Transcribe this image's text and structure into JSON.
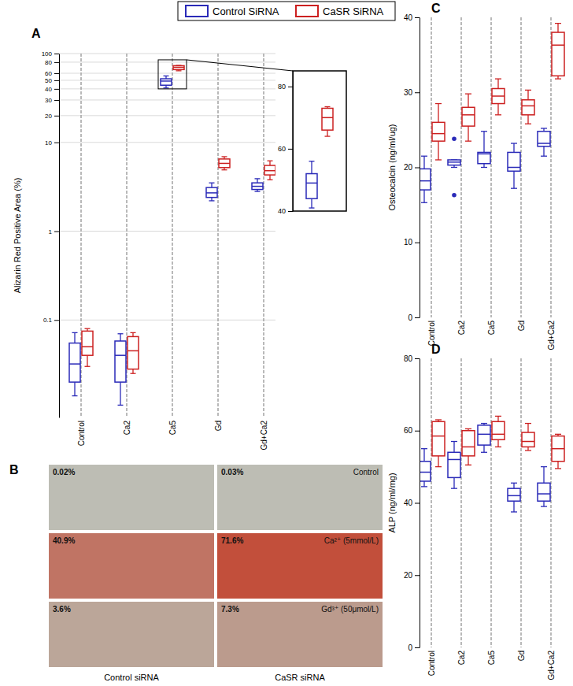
{
  "chart_data": [
    {
      "type": "box",
      "title": "A",
      "ylabel": "Alizarin Red Positive Area (%)",
      "log": "y",
      "grid": true,
      "categories": [
        "Control",
        "Ca2",
        "Ca5",
        "Gd",
        "Gd+Ca2"
      ],
      "ylim": [
        0.008,
        100
      ],
      "yticks": [
        0.1,
        1,
        10,
        20,
        30,
        40,
        50,
        60,
        80,
        100
      ],
      "series": [
        {
          "name": "Control SiRNA",
          "color": "#2a2ab8",
          "values": [
            {
              "min": 0.014,
              "q1": 0.02,
              "median": 0.032,
              "q3": 0.055,
              "max": 0.072
            },
            {
              "min": 0.011,
              "q1": 0.02,
              "median": 0.04,
              "q3": 0.058,
              "max": 0.07
            },
            {
              "min": 41,
              "q1": 44,
              "median": 49,
              "q3": 52,
              "max": 56
            },
            {
              "min": 2.2,
              "q1": 2.4,
              "median": 2.7,
              "q3": 3.1,
              "max": 3.5
            },
            {
              "min": 2.8,
              "q1": 2.95,
              "median": 3.2,
              "q3": 3.5,
              "max": 3.9
            }
          ]
        },
        {
          "name": "CaSR SiRNA",
          "color": "#cc2020",
          "values": [
            {
              "min": 0.03,
              "q1": 0.04,
              "median": 0.05,
              "q3": 0.075,
              "max": 0.08
            },
            {
              "min": 0.025,
              "q1": 0.028,
              "median": 0.045,
              "q3": 0.065,
              "max": 0.072
            },
            {
              "min": 64,
              "q1": 66,
              "median": 70,
              "q3": 73,
              "max": 73.5
            },
            {
              "min": 4.9,
              "q1": 5.2,
              "median": 5.8,
              "q3": 6.5,
              "max": 6.9
            },
            {
              "min": 3.8,
              "q1": 4.3,
              "median": 4.8,
              "q3": 5.5,
              "max": 6.2
            }
          ]
        }
      ],
      "inset": {
        "category": "Ca5",
        "ylim": [
          40,
          85
        ],
        "yticks": [
          40,
          60,
          80
        ]
      }
    },
    {
      "type": "image_grid",
      "title": "B",
      "rows": [
        "Control",
        "Ca²⁺ (5mmol/L)",
        "Gd³⁺ (50μmol/L)"
      ],
      "columns": [
        "Control siRNA",
        "CaSR siRNA"
      ],
      "values": [
        [
          0.02,
          0.03
        ],
        [
          40.9,
          71.6
        ],
        [
          3.6,
          7.3
        ]
      ],
      "value_labels": [
        [
          "0.02%",
          "0.03%"
        ],
        [
          "40.9%",
          "71.6%"
        ],
        [
          "3.6%",
          "7.3%"
        ]
      ]
    },
    {
      "type": "box",
      "title": "C",
      "ylabel": "Osteocalcin (ng/ml/ug)",
      "grid": "x",
      "categories": [
        "Control",
        "Ca2",
        "Ca5",
        "Gd",
        "Gd+Ca2"
      ],
      "ylim": [
        0,
        40
      ],
      "yticks": [
        0,
        10,
        20,
        30,
        40
      ],
      "series": [
        {
          "color": "#2a2ab8",
          "values": [
            {
              "min": 15.3,
              "q1": 17,
              "median": 18.2,
              "q3": 19.8,
              "max": 21.5
            },
            {
              "min": 20,
              "q1": 20.3,
              "median": 20.7,
              "q3": 21,
              "max": 21,
              "outliers": [
                23.8,
                16.3
              ]
            },
            {
              "min": 20,
              "q1": 20.5,
              "median": 21.8,
              "q3": 22,
              "max": 24.8
            },
            {
              "min": 17.2,
              "q1": 19.5,
              "median": 20,
              "q3": 22,
              "max": 23.2
            },
            {
              "min": 21.5,
              "q1": 22.8,
              "median": 23.2,
              "q3": 24.8,
              "max": 25.2
            }
          ]
        },
        {
          "color": "#cc2020",
          "values": [
            {
              "min": 21,
              "q1": 23.5,
              "median": 24.5,
              "q3": 26,
              "max": 28.5
            },
            {
              "min": 23.5,
              "q1": 25.5,
              "median": 27,
              "q3": 28,
              "max": 29.8
            },
            {
              "min": 27,
              "q1": 28.5,
              "median": 29.5,
              "q3": 30.5,
              "max": 31.8
            },
            {
              "min": 25.8,
              "q1": 27,
              "median": 28.2,
              "q3": 29,
              "max": 30.3
            },
            {
              "min": 31.8,
              "q1": 32.2,
              "median": 36.3,
              "q3": 38,
              "max": 39.2
            }
          ]
        }
      ]
    },
    {
      "type": "box",
      "title": "D",
      "ylabel": "ALP (ng/ml/mg)",
      "grid": "x",
      "categories": [
        "Control",
        "Ca2",
        "Ca5",
        "Gd",
        "Gd+Ca2"
      ],
      "ylim": [
        0,
        80
      ],
      "yticks": [
        0,
        20,
        40,
        60,
        80
      ],
      "series": [
        {
          "color": "#2a2ab8",
          "values": [
            {
              "min": 44.5,
              "q1": 46,
              "median": 48.5,
              "q3": 51.5,
              "max": 55
            },
            {
              "min": 44,
              "q1": 47,
              "median": 52,
              "q3": 54,
              "max": 57
            },
            {
              "min": 54,
              "q1": 56,
              "median": 59,
              "q3": 61.5,
              "max": 62
            },
            {
              "min": 37.5,
              "q1": 40.5,
              "median": 42,
              "q3": 44,
              "max": 45.5
            },
            {
              "min": 39,
              "q1": 40.5,
              "median": 42.5,
              "q3": 45.5,
              "max": 50
            }
          ]
        },
        {
          "color": "#cc2020",
          "values": [
            {
              "min": 50,
              "q1": 53,
              "median": 58.5,
              "q3": 62.5,
              "max": 63
            },
            {
              "min": 50.5,
              "q1": 53,
              "median": 55.5,
              "q3": 60,
              "max": 60.5
            },
            {
              "min": 55.5,
              "q1": 57.5,
              "median": 59,
              "q3": 62.5,
              "max": 64
            },
            {
              "min": 54.5,
              "q1": 55.5,
              "median": 57,
              "q3": 59.5,
              "max": 62
            },
            {
              "min": 49.5,
              "q1": 51.5,
              "median": 55,
              "q3": 58.5,
              "max": 59
            }
          ]
        }
      ]
    }
  ]
}
